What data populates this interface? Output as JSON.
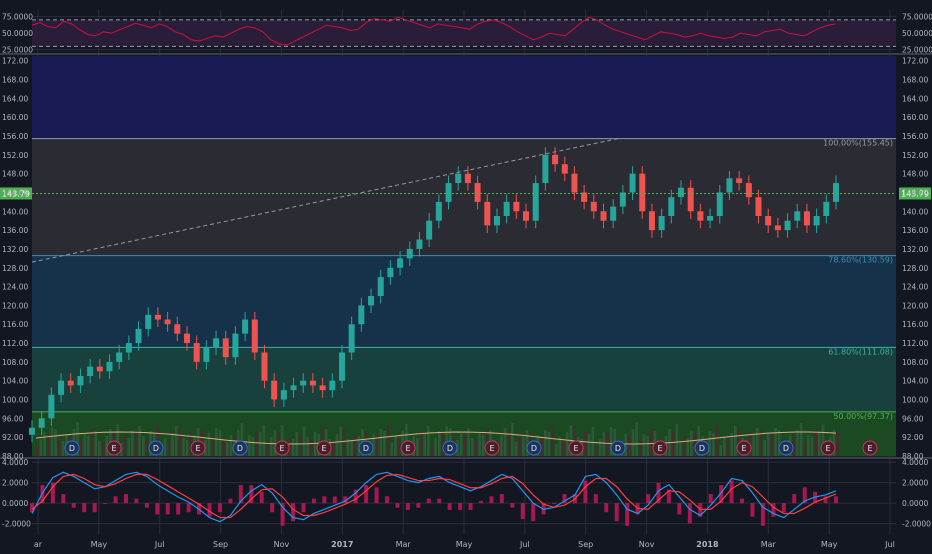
{
  "colors": {
    "background": "#131722",
    "grid": "#2a2e39",
    "axis_text": "#b2b5be",
    "up": "#26a69a",
    "down": "#ef5350",
    "rsi_line": "#d0103a",
    "rsi_band": "#2a1d3a",
    "macd_line": "#2196f3",
    "signal_line": "#ff3d3d",
    "histogram": "#c2185b",
    "volume_ma": "#e0a97e",
    "price_marker": "#4caf50",
    "trendline": "#9598a1"
  },
  "chart_data": [
    {
      "type": "line",
      "panel": "rsi",
      "yticks": [
        "25.0000",
        "50.0000",
        "75.0000"
      ],
      "ylim": [
        20,
        85
      ],
      "upper_band": 70,
      "lower_band": 30,
      "series": [
        {
          "values": [
            62,
            66,
            60,
            58,
            68,
            64,
            55,
            48,
            46,
            52,
            50,
            55,
            60,
            65,
            62,
            58,
            64,
            60,
            52,
            48,
            40,
            38,
            42,
            46,
            44,
            50,
            56,
            60,
            58,
            52,
            40,
            34,
            32,
            38,
            44,
            50,
            56,
            62,
            60,
            58,
            54,
            56,
            66,
            72,
            70,
            68,
            74,
            70,
            66,
            62,
            58,
            64,
            62,
            60,
            58,
            56,
            64,
            68,
            70,
            66,
            60,
            52,
            46,
            40,
            44,
            50,
            48,
            46,
            56,
            66,
            74,
            70,
            62,
            56,
            52,
            48,
            44,
            40,
            46,
            52,
            50,
            48,
            44,
            46,
            50,
            46,
            44,
            42,
            44,
            50,
            48,
            46,
            52,
            54,
            56,
            50,
            48,
            46,
            52,
            58,
            62,
            64
          ]
        }
      ],
      "legend": "none",
      "grid": true
    },
    {
      "type": "candlestick",
      "panel": "price",
      "yticks": [
        "88.00",
        "92.00",
        "96.00",
        "100.00",
        "104.00",
        "108.00",
        "112.00",
        "116.00",
        "120.00",
        "124.00",
        "128.00",
        "132.00",
        "136.00",
        "140.00",
        "144.00",
        "148.00",
        "152.00",
        "156.00",
        "160.00",
        "164.00",
        "168.00",
        "172.00"
      ],
      "ylim": [
        88,
        173
      ],
      "xticks": [
        "ar",
        "May",
        "Jul",
        "Sep",
        "Nov",
        "2017",
        "Mar",
        "May",
        "Jul",
        "Sep",
        "Nov",
        "2018",
        "Mar",
        "May",
        "Jul"
      ],
      "closes": [
        94,
        96,
        101,
        104,
        103,
        105,
        107,
        106,
        108,
        110,
        112,
        115,
        118,
        117,
        116,
        114,
        112,
        108,
        111,
        113,
        109,
        114,
        117,
        110,
        104,
        100,
        102,
        103,
        104,
        103,
        102,
        104,
        110,
        116,
        120,
        122,
        126,
        128,
        130,
        132,
        134,
        138,
        142,
        146,
        148,
        146,
        142,
        137,
        139,
        142,
        140,
        138,
        146,
        152,
        150,
        148,
        144,
        142,
        140,
        138,
        141,
        144,
        148,
        140,
        136,
        139,
        143,
        145,
        140,
        138,
        139,
        144,
        147,
        146,
        143,
        139,
        137,
        136,
        138,
        140,
        137,
        139,
        142,
        146
      ],
      "current_price_label": "143.79",
      "fib_levels": [
        {
          "label": "100.00%(155.45)",
          "value": 155.45,
          "fill": "#2b2b34"
        },
        {
          "label": "78.60%(130.59)",
          "value": 130.59,
          "fill": "#16324a"
        },
        {
          "label": "61.80%(111.08)",
          "value": 111.08,
          "fill": "#18403d"
        },
        {
          "label": "50.00%(97.37)",
          "value": 97.37,
          "fill": "#1b4a22"
        }
      ],
      "top_zone_fill": "#1a1a55",
      "event_markers": [
        "D",
        "E",
        "D",
        "E",
        "D",
        "E",
        "E",
        "D",
        "E",
        "D",
        "E",
        "D",
        "E",
        "D",
        "E",
        "D",
        "E",
        "D",
        "E",
        "E"
      ],
      "legend": "none",
      "grid": true
    },
    {
      "type": "line",
      "panel": "macd",
      "yticks": [
        "-2.0000",
        "0.0000",
        "2.0000",
        "4.0000"
      ],
      "ylim": [
        -3,
        4.2
      ],
      "series": [
        {
          "values": [
            -1,
            1,
            2.5,
            3,
            2.6,
            2,
            1.4,
            1.6,
            2.2,
            2.8,
            3,
            2.6,
            1.8,
            1.2,
            0.6,
            0.1,
            -0.6,
            -1.4,
            -1.8,
            -1.2,
            0.2,
            1.2,
            1.8,
            1.0,
            -0.4,
            -1.4,
            -1.6,
            -1.0,
            -0.6,
            -0.2,
            0.2,
            1,
            2,
            2.8,
            3,
            2.6,
            2.2,
            2.0,
            2.4,
            2.6,
            2.0,
            1.6,
            1.2,
            1.6,
            2.2,
            2.8,
            2.4,
            1.2,
            0.0,
            -0.6,
            -0.4,
            0.2,
            0.8,
            2.6,
            2.8,
            2.0,
            0.8,
            -0.6,
            -1.0,
            -0.2,
            1.2,
            1.8,
            0.6,
            -0.6,
            -1.2,
            -0.2,
            1.0,
            2.4,
            2.2,
            1.0,
            -0.4,
            -1.0,
            -1.4,
            -0.6,
            0.2,
            0.6,
            0.8,
            1.2
          ]
        },
        {
          "values": [
            -0.6,
            0.2,
            1.6,
            2.6,
            2.8,
            2.4,
            1.8,
            1.6,
            1.9,
            2.4,
            2.8,
            2.8,
            2.3,
            1.7,
            1.1,
            0.5,
            -0.1,
            -0.8,
            -1.4,
            -1.4,
            -0.6,
            0.4,
            1.3,
            1.4,
            0.6,
            -0.6,
            -1.2,
            -1.2,
            -0.9,
            -0.5,
            -0.1,
            0.4,
            1.2,
            2.1,
            2.7,
            2.8,
            2.5,
            2.2,
            2.2,
            2.4,
            2.3,
            1.9,
            1.5,
            1.5,
            1.9,
            2.4,
            2.6,
            1.9,
            0.8,
            -0.1,
            -0.4,
            -0.2,
            0.4,
            1.6,
            2.4,
            2.4,
            1.6,
            0.4,
            -0.5,
            -0.6,
            0.3,
            1.2,
            1.1,
            0.3,
            -0.6,
            -0.6,
            0.2,
            1.4,
            2.0,
            1.6,
            0.6,
            -0.4,
            -1.0,
            -1.0,
            -0.5,
            0.1,
            0.5,
            0.9
          ]
        }
      ],
      "legend": "none",
      "grid": true
    }
  ]
}
